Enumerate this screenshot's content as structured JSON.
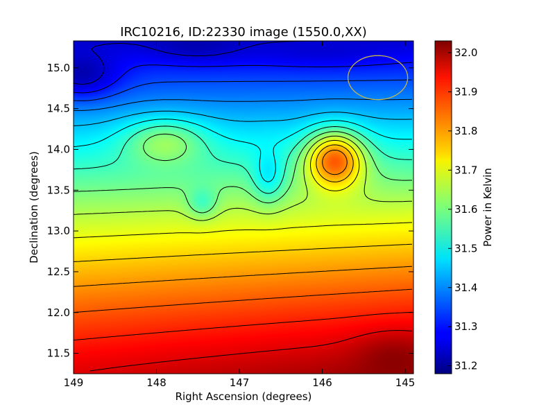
{
  "chart_data": {
    "type": "heatmap",
    "title": "IRC10216, ID:22330 image (1550.0,XX)",
    "xlabel": "Right Ascension (degrees)",
    "ylabel": "Declination (degrees)",
    "xlim": [
      149.0,
      144.9
    ],
    "ylim": [
      11.25,
      15.33
    ],
    "x_ticks": [
      149,
      148,
      147,
      146,
      145
    ],
    "x_tick_labels": [
      "149",
      "148",
      "147",
      "146",
      "145"
    ],
    "y_ticks": [
      11.5,
      12.0,
      12.5,
      13.0,
      13.5,
      14.0,
      14.5,
      15.0
    ],
    "y_tick_labels": [
      "11.5",
      "12.0",
      "12.5",
      "13.0",
      "13.5",
      "14.0",
      "14.5",
      "15.0"
    ],
    "colorbar": {
      "label": "Power in Kelvin",
      "range": [
        31.18,
        32.03
      ],
      "ticks": [
        31.2,
        31.3,
        31.4,
        31.5,
        31.6,
        31.7,
        31.8,
        31.9,
        32.0
      ],
      "tick_labels": [
        "31.2",
        "31.3",
        "31.4",
        "31.5",
        "31.6",
        "31.7",
        "31.8",
        "31.9",
        "32.0"
      ],
      "colormap": "jet"
    },
    "contour_levels": [
      31.25,
      31.3,
      31.35,
      31.4,
      31.45,
      31.5,
      31.55,
      31.6,
      31.65,
      31.7,
      31.75,
      31.8,
      31.85,
      31.9,
      31.95
    ],
    "beam_circle": {
      "ra": 145.33,
      "dec": 14.88,
      "radius_deg": 0.36,
      "color": "#c9b84a"
    },
    "features": [
      {
        "ra": 148.9,
        "dec": 14.95,
        "value": 31.22,
        "width": 0.45,
        "height": 0.3
      },
      {
        "ra": 147.5,
        "dec": 15.3,
        "value": 31.22,
        "width": 0.6,
        "height": 0.2
      },
      {
        "ra": 146.0,
        "dec": 15.25,
        "value": 31.25,
        "width": 0.9,
        "height": 0.2
      },
      {
        "ra": 147.9,
        "dec": 14.05,
        "value": 31.63,
        "width": 0.5,
        "height": 0.3
      },
      {
        "ra": 146.65,
        "dec": 13.75,
        "value": 31.48,
        "width": 0.2,
        "height": 0.35
      },
      {
        "ra": 147.45,
        "dec": 13.38,
        "value": 31.55,
        "width": 0.18,
        "height": 0.2
      },
      {
        "ra": 145.85,
        "dec": 13.85,
        "value": 31.85,
        "width": 0.35,
        "height": 0.35
      },
      {
        "ra": 145.15,
        "dec": 11.4,
        "value": 32.02,
        "width": 0.45,
        "height": 0.3
      }
    ]
  }
}
